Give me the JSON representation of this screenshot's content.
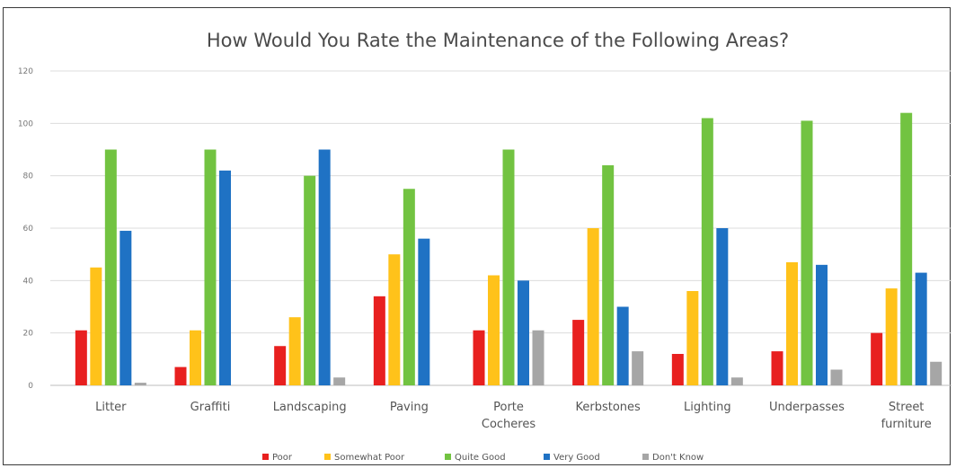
{
  "chart_data": {
    "type": "bar",
    "title": "How Would You Rate the Maintenance of the Following Areas?",
    "xlabel": "",
    "ylabel": "",
    "ylim": [
      0,
      120
    ],
    "yticks": [
      "0",
      "20",
      "40",
      "60",
      "80",
      "100",
      "120"
    ],
    "grid": true,
    "legend_position": "bottom",
    "categories": [
      [
        "Litter"
      ],
      [
        "Graffiti"
      ],
      [
        "Landscaping"
      ],
      [
        "Paving"
      ],
      [
        "Porte",
        "Cocheres"
      ],
      [
        "Kerbstones"
      ],
      [
        "Lighting"
      ],
      [
        "Underpasses"
      ],
      [
        "Street",
        "furniture"
      ]
    ],
    "series": [
      {
        "name": "Poor",
        "color": "#e8201f",
        "values": [
          21,
          7,
          15,
          34,
          21,
          25,
          12,
          13,
          20
        ]
      },
      {
        "name": "Somewhat Poor",
        "color": "#ffc21a",
        "values": [
          45,
          21,
          26,
          50,
          42,
          60,
          36,
          47,
          37
        ]
      },
      {
        "name": "Quite Good",
        "color": "#72c341",
        "values": [
          90,
          90,
          80,
          75,
          90,
          84,
          102,
          101,
          104
        ]
      },
      {
        "name": "Very Good",
        "color": "#1f72c4",
        "values": [
          59,
          82,
          90,
          56,
          40,
          30,
          60,
          46,
          43
        ]
      },
      {
        "name": "Don't Know",
        "color": "#a6a6a6",
        "values": [
          1,
          0,
          3,
          0,
          21,
          13,
          3,
          6,
          9
        ]
      }
    ]
  }
}
